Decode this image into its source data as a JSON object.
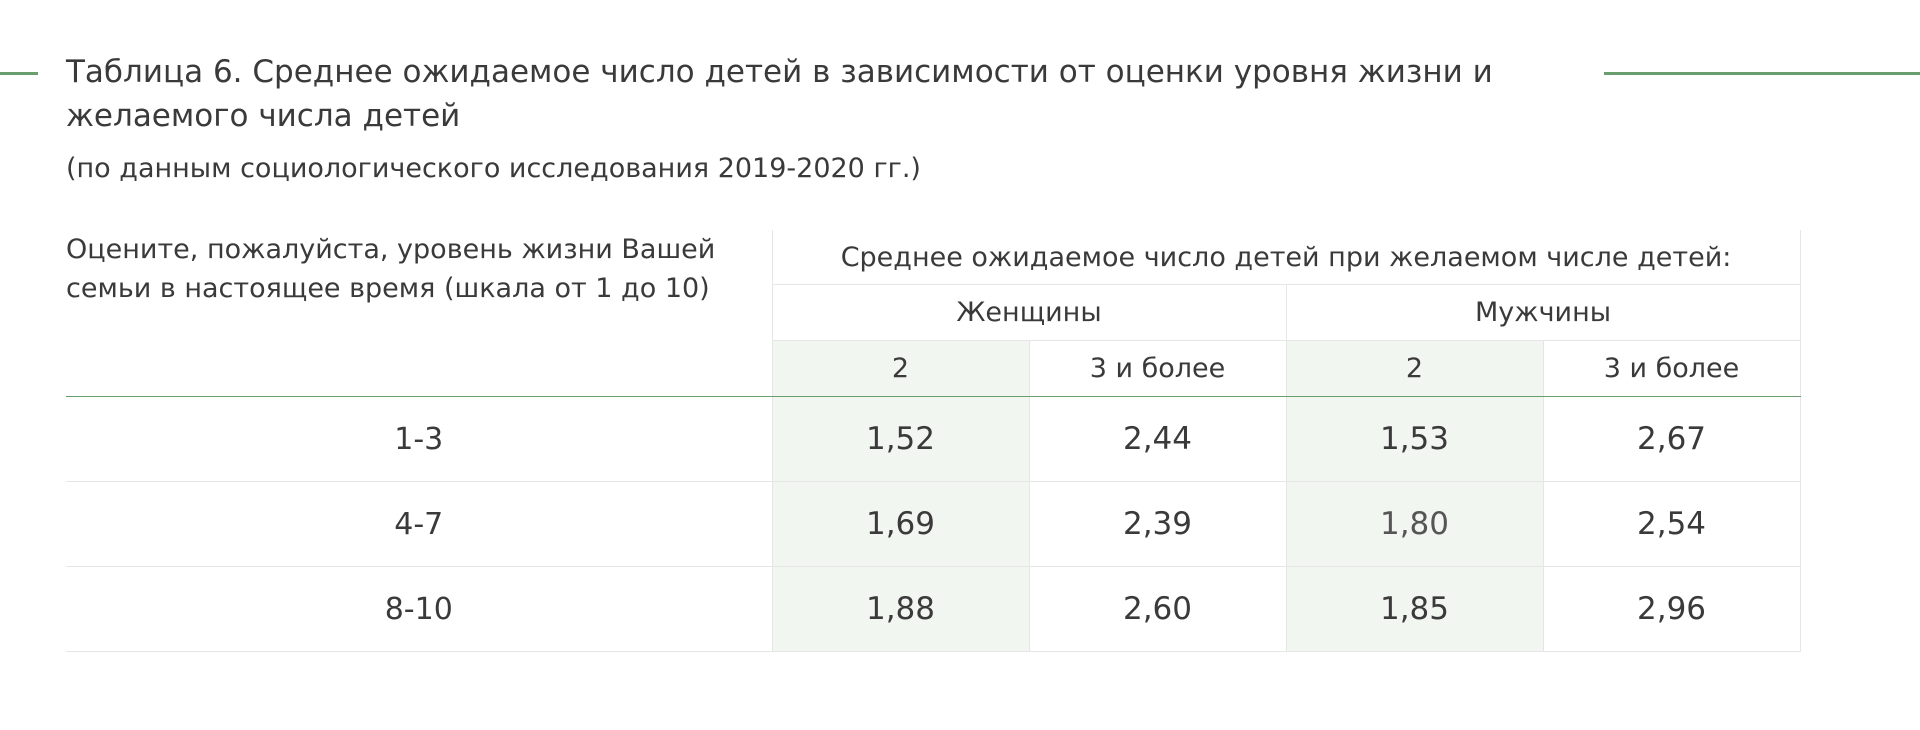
{
  "document": {
    "title": "Таблица 6. Среднее ожидаемое число детей в зависимости от оценки уровня жизни и желаемого числа детей",
    "subtitle": "(по данным социологического исследования 2019-2020 гг.)"
  },
  "colors": {
    "accent": "#6a9e6e",
    "shade": "#f1f6f0",
    "text": "#3a3a3a"
  },
  "table": {
    "question_header": "Оцените, пожалуйста, уровень жизни Вашей семьи в настоящее время (шкала от 1 до 10)",
    "group_header": "Среднее ожидаемое число детей при желаемом числе детей:",
    "sex": [
      "Женщины",
      "Мужчины"
    ],
    "subheaders": [
      "2",
      "3 и более",
      "2",
      "3 и более"
    ],
    "rows": [
      {
        "range": "1-3",
        "values": [
          "1,52",
          "2,44",
          "1,53",
          "2,67"
        ]
      },
      {
        "range": "4-7",
        "values": [
          "1,69",
          "2,39",
          "1,80",
          "2,54"
        ]
      },
      {
        "range": "8-10",
        "values": [
          "1,88",
          "2,60",
          "1,85",
          "2,96"
        ]
      }
    ]
  }
}
